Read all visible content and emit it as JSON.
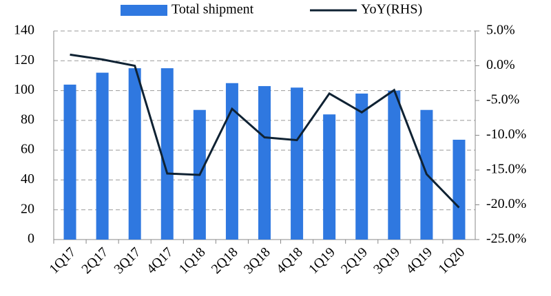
{
  "chart_data": {
    "type": "bar-line",
    "categories": [
      "1Q17",
      "2Q17",
      "3Q17",
      "4Q17",
      "1Q18",
      "2Q18",
      "3Q18",
      "4Q18",
      "1Q19",
      "2Q19",
      "3Q19",
      "4Q19",
      "1Q20"
    ],
    "series": [
      {
        "name": "Total shipment",
        "type": "bar",
        "color": "#2f78e0",
        "values": [
          104,
          112,
          115,
          115,
          87,
          105,
          103,
          102,
          84,
          98,
          100,
          87,
          67
        ]
      },
      {
        "name": "YoY(RHS)",
        "type": "line",
        "axis": "y2",
        "color": "#0f2233",
        "values": [
          1.6,
          0.9,
          0.0,
          -15.5,
          -15.7,
          -6.2,
          -10.3,
          -10.7,
          -4.0,
          -6.7,
          -3.5,
          -15.6,
          -20.4
        ]
      }
    ],
    "ylim": [
      0,
      140
    ],
    "yticks": [
      0,
      20,
      40,
      60,
      80,
      100,
      120,
      140
    ],
    "y2lim": [
      -25,
      5
    ],
    "y2ticks": [
      {
        "value": -25,
        "label": "-25.0%"
      },
      {
        "value": -20,
        "label": "-20.0%"
      },
      {
        "value": -15,
        "label": "-15.0%"
      },
      {
        "value": -10,
        "label": "-10.0%"
      },
      {
        "value": -5,
        "label": "-5.0%"
      },
      {
        "value": 0,
        "label": "0.0%"
      },
      {
        "value": 5,
        "label": "5.0%"
      }
    ],
    "grid": true,
    "legend": "top"
  }
}
